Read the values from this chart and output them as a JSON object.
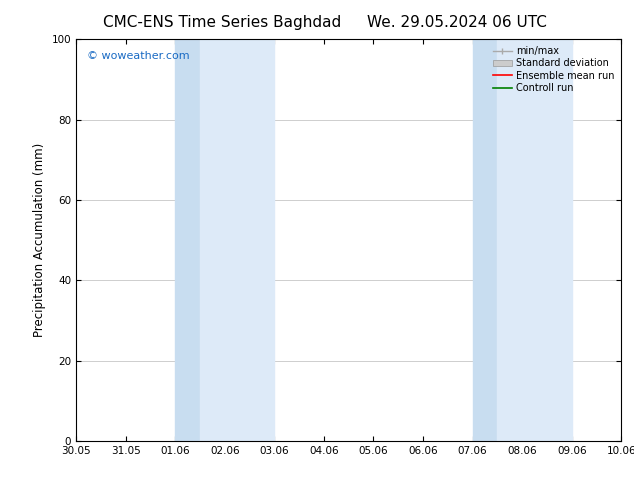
{
  "title_left": "CMC-ENS Time Series Baghdad",
  "title_right": "We. 29.05.2024 06 UTC",
  "ylabel": "Precipitation Accumulation (mm)",
  "ylim": [
    0,
    100
  ],
  "yticks": [
    0,
    20,
    40,
    60,
    80,
    100
  ],
  "background_color": "#ffffff",
  "plot_bg_color": "#ffffff",
  "shaded_bands": [
    {
      "x_start": 2.0,
      "x_end": 2.5,
      "color": "#c8ddf0"
    },
    {
      "x_start": 2.5,
      "x_end": 4.0,
      "color": "#ddeaf8"
    },
    {
      "x_start": 8.0,
      "x_end": 8.5,
      "color": "#c8ddf0"
    },
    {
      "x_start": 8.5,
      "x_end": 10.0,
      "color": "#ddeaf8"
    }
  ],
  "x_tick_labels": [
    "30.05",
    "31.05",
    "01.06",
    "02.06",
    "03.06",
    "04.06",
    "05.06",
    "06.06",
    "07.06",
    "08.06",
    "09.06",
    "10.06"
  ],
  "x_tick_positions": [
    0,
    1,
    2,
    3,
    4,
    5,
    6,
    7,
    8,
    9,
    10,
    11
  ],
  "xlim": [
    0,
    11
  ],
  "watermark": "© woweather.com",
  "watermark_color": "#1a6bc4",
  "watermark_fontsize": 8,
  "legend_items": [
    {
      "label": "min/max",
      "color": "#aaaaaa",
      "style": "errorbar"
    },
    {
      "label": "Standard deviation",
      "color": "#cccccc",
      "style": "fill"
    },
    {
      "label": "Ensemble mean run",
      "color": "#ff0000",
      "style": "line"
    },
    {
      "label": "Controll run",
      "color": "#008000",
      "style": "line"
    }
  ],
  "title_fontsize": 11,
  "tick_fontsize": 7.5,
  "ylabel_fontsize": 8.5
}
